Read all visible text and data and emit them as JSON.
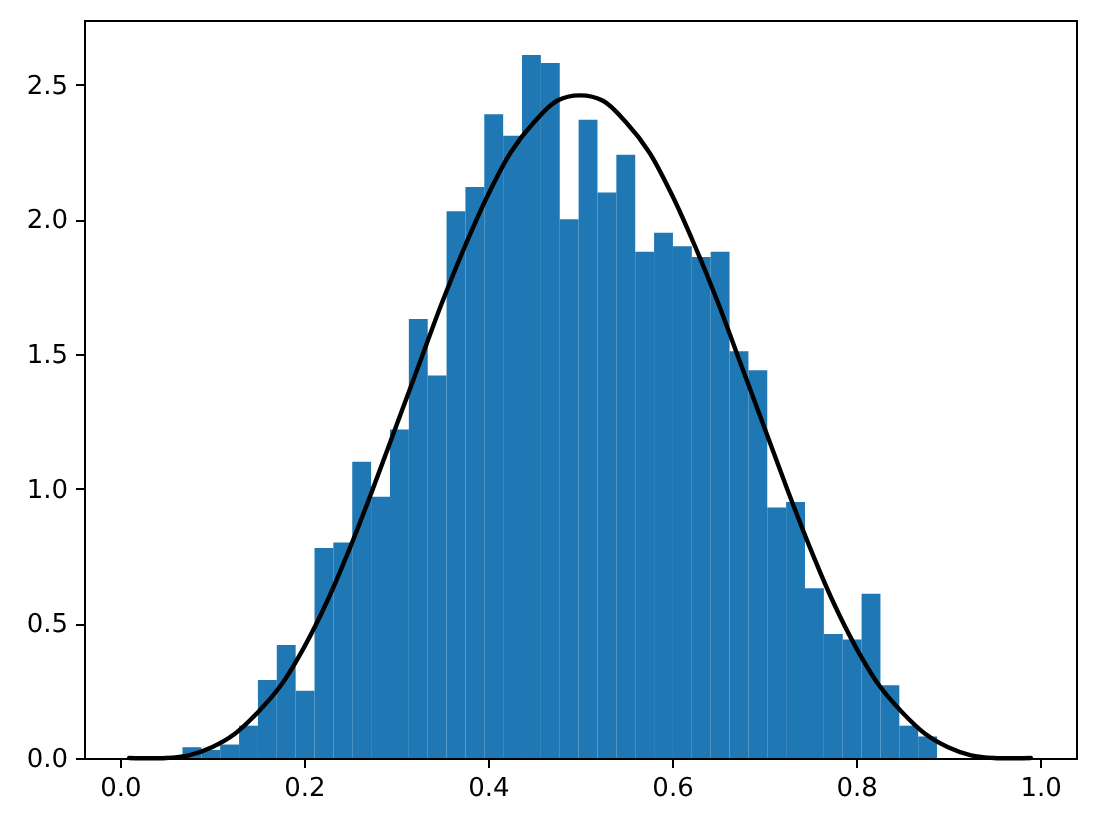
{
  "chart_data": {
    "type": "histogram",
    "bins": [
      0.068,
      0.0885,
      0.109,
      0.1295,
      0.15,
      0.1705,
      0.191,
      0.2115,
      0.232,
      0.2525,
      0.273,
      0.2935,
      0.314,
      0.3345,
      0.355,
      0.3755,
      0.396,
      0.4165,
      0.437,
      0.4575,
      0.478,
      0.4985,
      0.519,
      0.5395,
      0.56,
      0.5805,
      0.601,
      0.6215,
      0.642,
      0.6625,
      0.683,
      0.7035,
      0.724,
      0.7445,
      0.765,
      0.7855,
      0.806,
      0.8265,
      0.847,
      0.8675,
      0.888
    ],
    "series": [
      {
        "type": "histogram",
        "color": "#1f77b4",
        "values": [
          0.04,
          0.03,
          0.05,
          0.12,
          0.29,
          0.42,
          0.25,
          0.78,
          0.8,
          1.1,
          0.97,
          1.22,
          1.63,
          1.42,
          2.03,
          2.12,
          2.39,
          2.31,
          2.61,
          2.58,
          2.0,
          2.37,
          2.1,
          2.24,
          1.88,
          1.95,
          1.9,
          1.86,
          1.88,
          1.51,
          1.44,
          0.93,
          0.95,
          0.63,
          0.46,
          0.44,
          0.61,
          0.27,
          0.12,
          0.08
        ]
      },
      {
        "type": "line",
        "color": "#000000",
        "x": [
          0.01,
          0.05,
          0.075,
          0.1,
          0.125,
          0.15,
          0.175,
          0.2,
          0.225,
          0.25,
          0.275,
          0.3,
          0.325,
          0.35,
          0.375,
          0.4,
          0.425,
          0.45,
          0.475,
          0.5,
          0.525,
          0.55,
          0.575,
          0.6,
          0.625,
          0.65,
          0.675,
          0.7,
          0.725,
          0.75,
          0.775,
          0.8,
          0.825,
          0.85,
          0.875,
          0.9,
          0.925,
          0.95,
          0.99
        ],
        "values": [
          0,
          0,
          0.01,
          0.04,
          0.09,
          0.17,
          0.27,
          0.41,
          0.58,
          0.78,
          1.0,
          1.23,
          1.46,
          1.69,
          1.9,
          2.09,
          2.25,
          2.36,
          2.44,
          2.46,
          2.44,
          2.36,
          2.25,
          2.09,
          1.9,
          1.69,
          1.46,
          1.23,
          1.0,
          0.78,
          0.58,
          0.41,
          0.27,
          0.17,
          0.09,
          0.04,
          0.01,
          0,
          0
        ]
      }
    ],
    "xlim": [
      -0.039,
      1.039
    ],
    "xticks": [
      {
        "value": 0,
        "label": "0.0"
      },
      0.2,
      0.4,
      0.6,
      0.8,
      {
        "value": 1,
        "label": "1.0"
      }
    ],
    "ylim": [
      0,
      2.74
    ],
    "yticks": [
      {
        "value": 0,
        "label": "0.0"
      },
      0.5,
      {
        "value": 1,
        "label": "1.0"
      },
      1.5,
      {
        "value": 2,
        "label": "2.0"
      },
      2.5
    ]
  }
}
